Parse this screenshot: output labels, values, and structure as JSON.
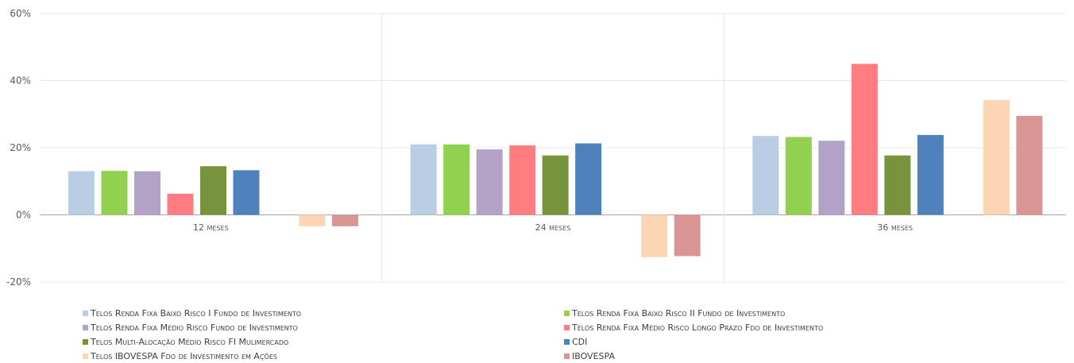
{
  "chart_data": {
    "type": "bar",
    "categories": [
      "12 meses",
      "24 meses",
      "36 meses"
    ],
    "ylim": [
      -20,
      60
    ],
    "yticks": [
      -20,
      0,
      20,
      40,
      60
    ],
    "ytick_labels": [
      "-20%",
      "0%",
      "20%",
      "40%",
      "60%"
    ],
    "grid": true,
    "legend_position": "bottom",
    "series": [
      {
        "name": "Telos Renda Fixa Baixo Risco I Fundo de Investimento",
        "color": "#B9CDE5",
        "values": [
          13.0,
          21.0,
          23.5
        ]
      },
      {
        "name": "Telos Renda Fixa Baixo Risco II Fundo de Investimento",
        "color": "#92D050",
        "values": [
          13.1,
          21.0,
          23.2
        ]
      },
      {
        "name": "Telos Renda Fixa Médio Risco Fundo de Investimento",
        "color": "#B3A2C7",
        "values": [
          13.0,
          19.5,
          22.1
        ]
      },
      {
        "name": "Telos Renda Fixa Médio Risco Longo Prazo Fdo de Investimento",
        "color": "#FF7C80",
        "values": [
          6.3,
          20.7,
          45.0
        ]
      },
      {
        "name": "Telos Multi-Alocação Médio Risco FI Mulimercado",
        "color": "#77933C",
        "values": [
          14.5,
          17.7,
          17.7
        ]
      },
      {
        "name": "CDI",
        "color": "#4F81BD",
        "values": [
          13.3,
          21.3,
          23.8
        ]
      },
      {
        "name": "Telos IBOVESPA Fdo de Investimento em Ações",
        "color": "#FCD5B5",
        "values": [
          null,
          null,
          null
        ]
      },
      {
        "name": "Telos IBOVESPA Fdo de Investimento em Ações (hidden)",
        "color": "#FCD5B5",
        "values": [
          -3.4,
          -12.6,
          34.2
        ]
      },
      {
        "name": "IBOVESPA",
        "color": "#D99694",
        "values": [
          -3.4,
          -12.3,
          29.5
        ]
      }
    ]
  },
  "legend": {
    "items": [
      {
        "label": "Telos Renda Fixa Baixo Risco I Fundo de Investimento",
        "color": "#B9CDE5"
      },
      {
        "label": "Telos Renda Fixa Baixo Risco II Fundo de Investimento",
        "color": "#92D050"
      },
      {
        "label": "Telos Renda Fixa Médio Risco Fundo de Investimento",
        "color": "#B3A2C7"
      },
      {
        "label": "Telos Renda Fixa Médio Risco Longo Prazo Fdo de Investimento",
        "color": "#FF7C80"
      },
      {
        "label": "Telos Multi-Alocação Médio Risco FI Mulimercado",
        "color": "#77933C"
      },
      {
        "label": "CDI",
        "color": "#4F81BD"
      },
      {
        "label": "Telos IBOVESPA Fdo de Investimento em Ações",
        "color": "#FCD5B5"
      },
      {
        "label": "IBOVESPA",
        "color": "#D99694"
      }
    ]
  }
}
